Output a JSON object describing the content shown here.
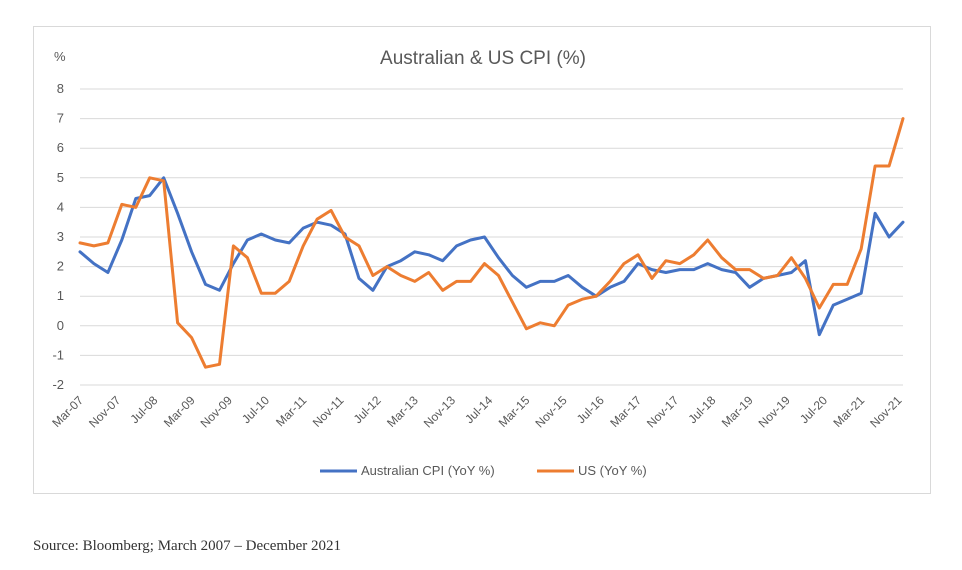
{
  "chart_data": {
    "type": "line",
    "title": "Australian & US CPI (%)",
    "ylabel": "%",
    "xlabel": "",
    "ylim": [
      -2,
      8
    ],
    "yticks": [
      -2,
      -1,
      0,
      1,
      2,
      3,
      4,
      5,
      6,
      7,
      8
    ],
    "grid": true,
    "legend_position": "bottom",
    "x_tick_labels": [
      "Mar-07",
      "Nov-07",
      "Jul-08",
      "Mar-09",
      "Nov-09",
      "Jul-10",
      "Mar-11",
      "Nov-11",
      "Jul-12",
      "Mar-13",
      "Nov-13",
      "Jul-14",
      "Mar-15",
      "Nov-15",
      "Jul-16",
      "Mar-17",
      "Nov-17",
      "Jul-18",
      "Mar-19",
      "Nov-19",
      "Jul-20",
      "Mar-21",
      "Nov-21"
    ],
    "x_tick_indices": [
      0,
      2.667,
      5.333,
      8,
      10.667,
      13.333,
      16,
      18.667,
      21.333,
      24,
      26.667,
      29.333,
      32,
      34.667,
      37.333,
      40,
      42.667,
      45.333,
      48,
      50.667,
      53.333,
      56,
      58.667
    ],
    "series": [
      {
        "name": "Australian CPI (YoY %)",
        "color": "#4472c4",
        "values": [
          2.5,
          2.1,
          1.8,
          2.9,
          4.3,
          4.4,
          5.0,
          3.8,
          2.5,
          1.4,
          1.2,
          2.1,
          2.9,
          3.1,
          2.9,
          2.8,
          3.3,
          3.5,
          3.4,
          3.1,
          1.6,
          1.2,
          2.0,
          2.2,
          2.5,
          2.4,
          2.2,
          2.7,
          2.9,
          3.0,
          2.3,
          1.7,
          1.3,
          1.5,
          1.5,
          1.7,
          1.3,
          1.0,
          1.3,
          1.5,
          2.1,
          1.9,
          1.8,
          1.9,
          1.9,
          2.1,
          1.9,
          1.8,
          1.3,
          1.6,
          1.7,
          1.8,
          2.2,
          -0.3,
          0.7,
          0.9,
          1.1,
          3.8,
          3.0,
          3.5
        ]
      },
      {
        "name": "US (YoY %)",
        "color": "#ed7d31",
        "values": [
          2.8,
          2.7,
          2.8,
          4.1,
          4.0,
          5.0,
          4.9,
          0.1,
          -0.4,
          -1.4,
          -1.3,
          2.7,
          2.3,
          1.1,
          1.1,
          1.5,
          2.7,
          3.6,
          3.9,
          3.0,
          2.7,
          1.7,
          2.0,
          1.7,
          1.5,
          1.8,
          1.2,
          1.5,
          1.5,
          2.1,
          1.7,
          0.8,
          -0.1,
          0.1,
          0.0,
          0.7,
          0.9,
          1.0,
          1.5,
          2.1,
          2.4,
          1.6,
          2.2,
          2.1,
          2.4,
          2.9,
          2.3,
          1.9,
          1.9,
          1.6,
          1.7,
          2.3,
          1.6,
          0.6,
          1.4,
          1.4,
          2.6,
          5.4,
          5.4,
          7.0
        ]
      }
    ]
  },
  "source_note": "Source: Bloomberg; March 2007 – December 2021"
}
